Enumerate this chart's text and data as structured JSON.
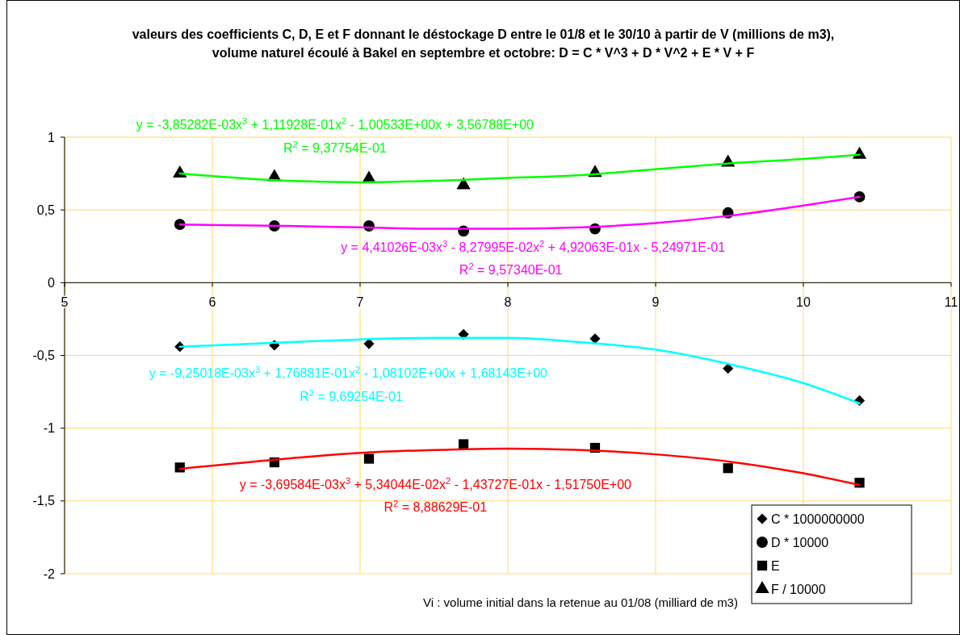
{
  "chart_data": {
    "type": "scatter",
    "title": "valeurs des coefficients C, D, E et F donnant le déstockage D entre le 01/8 et le 30/10 à partir de V (millions de m3), volume naturel écoulé à Bakel en septembre et octobre: D = C * V^3 + D * V^2 + E * V + F",
    "xlabel": "Vi : volume initial dans la retenue au 01/08 (milliard de m3)",
    "x": [
      5.78,
      6.42,
      7.06,
      7.7,
      8.59,
      9.49,
      10.38
    ],
    "xlim": [
      5,
      11
    ],
    "xticks": [
      5,
      6,
      7,
      8,
      9,
      10,
      11
    ],
    "ylim": [
      -2,
      1
    ],
    "yticks": [
      -2,
      {
        "value": -1.5,
        "label": "-1,5"
      },
      -1,
      {
        "value": -0.5,
        "label": "-0,5"
      },
      0,
      {
        "value": 0.5,
        "label": "0,5"
      },
      1
    ],
    "grid": true,
    "legend": "bottom right",
    "series": [
      {
        "name": "C * 1000000000",
        "color": "#000000",
        "marker": "diamond",
        "values": [
          -0.44,
          -0.43,
          -0.42,
          -0.355,
          -0.385,
          -0.59,
          -0.81
        ]
      },
      {
        "name": "D * 10000",
        "color": "#000000",
        "marker": "circle",
        "values": [
          0.4,
          0.39,
          0.39,
          0.355,
          0.37,
          0.48,
          0.59
        ]
      },
      {
        "name": "E",
        "color": "#000000",
        "marker": "square",
        "values": [
          -1.27,
          -1.235,
          -1.21,
          -1.11,
          -1.135,
          -1.275,
          -1.375
        ]
      },
      {
        "name": "F / 10000",
        "color": "#000000",
        "marker": "triangle",
        "values": [
          0.75,
          0.725,
          0.715,
          0.67,
          0.755,
          0.825,
          0.88
        ]
      },
      {
        "type": "line",
        "color": "#00ff00",
        "x": [
          5.78,
          6.5,
          7,
          7.5,
          8,
          8.5,
          9,
          9.5,
          10,
          10.38
        ],
        "values": [
          0.75,
          0.7,
          0.69,
          0.7,
          0.72,
          0.74,
          0.78,
          0.82,
          0.85,
          0.88
        ]
      },
      {
        "type": "line",
        "color": "#ff00ff",
        "x": [
          5.78,
          6.5,
          7,
          7.5,
          8,
          8.5,
          9,
          9.5,
          10,
          10.38
        ],
        "values": [
          0.4,
          0.39,
          0.38,
          0.37,
          0.37,
          0.38,
          0.41,
          0.46,
          0.53,
          0.59
        ]
      },
      {
        "type": "line",
        "color": "#00ffff",
        "x": [
          5.78,
          6.5,
          7,
          7.5,
          8,
          8.5,
          9,
          9.5,
          10,
          10.38
        ],
        "values": [
          -0.44,
          -0.41,
          -0.39,
          -0.38,
          -0.38,
          -0.41,
          -0.46,
          -0.56,
          -0.69,
          -0.83
        ]
      },
      {
        "type": "line",
        "color": "#ff0000",
        "x": [
          5.78,
          6.5,
          7,
          7.5,
          8,
          8.5,
          9,
          9.5,
          10,
          10.38
        ],
        "values": [
          -1.28,
          -1.21,
          -1.17,
          -1.15,
          -1.14,
          -1.15,
          -1.18,
          -1.23,
          -1.31,
          -1.39
        ]
      }
    ],
    "annotations": [
      "y = -3,85282E-03x$^{3}$ + 1,11928E-01x$^{2}$ - 1,00533E+00x + 3,56788E+00",
      "R$^{2}$ = 9,37754E-01",
      "y = 4,41026E-03x$^{3}$ - 8,27995E-02x$^{2}$ + 4,92063E-01x - 5,24971E-01",
      "R$^{2}$ = 9,57340E-01",
      "y = -9,25018E-03x$^{3}$ + 1,76881E-01x$^{2}$ - 1,08102E+00x + 1,68143E+00",
      "R$^{2}$ = 9,69254E-01",
      "y = -3,69584E-03x$^{3}$ + 5,34044E-02x$^{2}$ - 1,43727E-01x - 1,51750E+00",
      "R$^{2}$ = 8,88629E-01"
    ]
  }
}
